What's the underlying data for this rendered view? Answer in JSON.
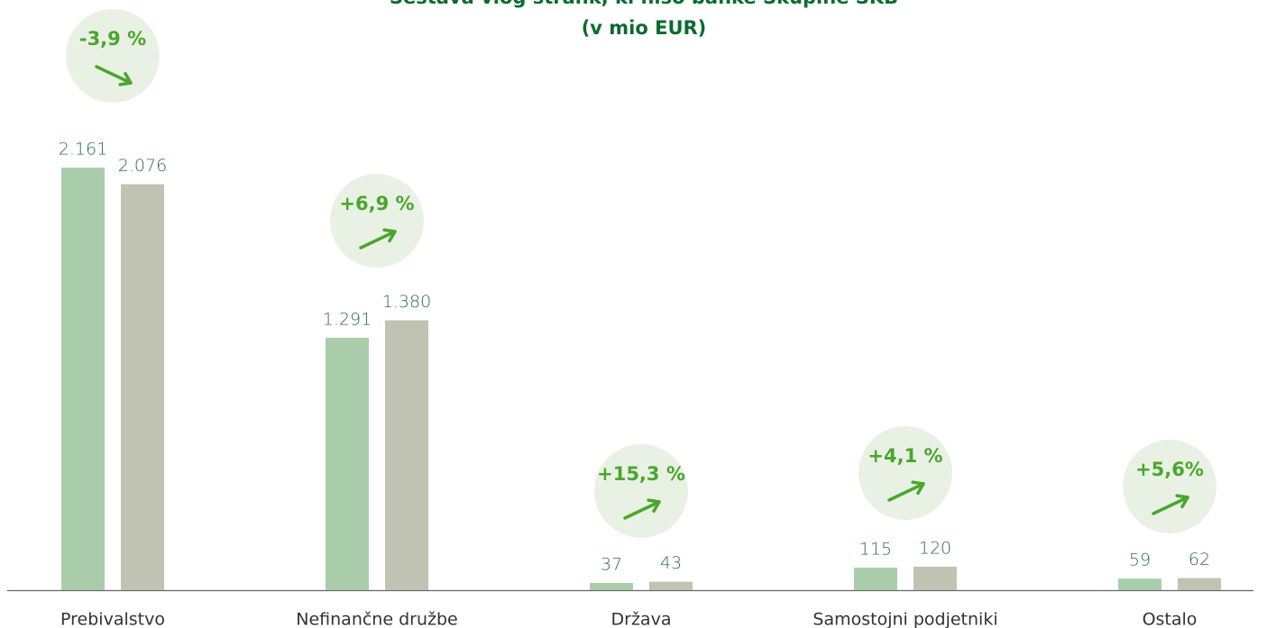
{
  "chart_data": {
    "type": "bar",
    "title": [
      "Sestava vlog strank, ki niso banke Skupine SKB",
      "(v mio EUR)"
    ],
    "categories": [
      "Prebivalstvo",
      "Nefinančne družbe",
      "Država",
      "Samostojni podjetniki",
      "Ostalo"
    ],
    "series": [
      {
        "color": "#a9cdab",
        "values": [
          2161,
          1291,
          37,
          115,
          59
        ],
        "value_labels": [
          "2.161",
          "1.291",
          "37",
          "115",
          "59"
        ]
      },
      {
        "color": "#c1c3b2",
        "values": [
          2076,
          1380,
          43,
          120,
          62
        ],
        "value_labels": [
          "2.076",
          "1.380",
          "43",
          "120",
          "62"
        ]
      }
    ],
    "annotations": [
      "-3,9 %",
      "+6,9 %",
      "+15,3 %",
      "+4,1 %",
      "+5,6%"
    ]
  }
}
